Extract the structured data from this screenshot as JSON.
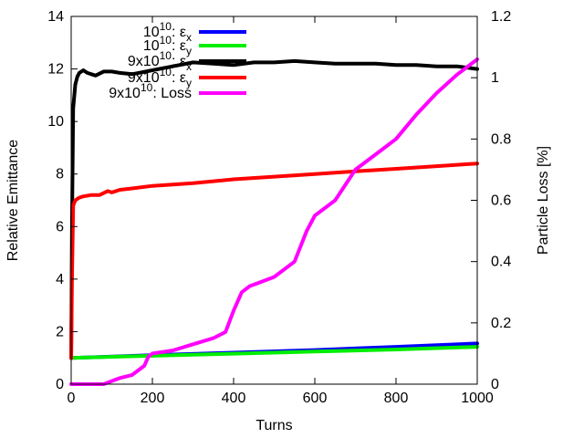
{
  "chart_data": {
    "type": "line",
    "title": "",
    "xlabel": "Turns",
    "ylabel": "Relative Emittance",
    "y2label": "Particle Loss [%]",
    "xlim": [
      0,
      1000
    ],
    "ylim": [
      0,
      14
    ],
    "y2lim": [
      0,
      1.2
    ],
    "x_ticks": [
      0,
      200,
      400,
      600,
      800,
      1000
    ],
    "y_ticks": [
      0,
      2,
      4,
      6,
      8,
      10,
      12,
      14
    ],
    "y2_ticks": [
      0,
      0.2,
      0.4,
      0.6,
      0.8,
      1,
      1.2
    ],
    "x_tick_labels": [
      "0",
      "200",
      "400",
      "600",
      "800",
      "1000"
    ],
    "y_tick_labels": [
      "0",
      "2",
      "4",
      "6",
      "8",
      "10",
      "12",
      "14"
    ],
    "y2_tick_labels": [
      "0",
      "0.2",
      "0.4",
      "0.6",
      "0.8",
      "1",
      "1.2"
    ],
    "grid": false,
    "legend_position": "top-left",
    "series": [
      {
        "name": "10^10: εx",
        "legend_prefix": "10",
        "legend_exp": "10",
        "legend_sep": ":",
        "legend_sym": "ε",
        "legend_sub": "x",
        "axis": "y1",
        "color": "#0000ff",
        "x": [
          0,
          200,
          400,
          600,
          800,
          1000
        ],
        "y": [
          1.0,
          1.1,
          1.2,
          1.3,
          1.42,
          1.55
        ]
      },
      {
        "name": "10^10: εy",
        "legend_prefix": "10",
        "legend_exp": "10",
        "legend_sep": ":",
        "legend_sym": "ε",
        "legend_sub": "y",
        "axis": "y1",
        "color": "#00ee00",
        "x": [
          0,
          200,
          400,
          600,
          800,
          1000
        ],
        "y": [
          1.0,
          1.08,
          1.16,
          1.24,
          1.32,
          1.42
        ]
      },
      {
        "name": "9x10^10: εx",
        "legend_prefix": "9x10",
        "legend_exp": "10",
        "legend_sep": ":",
        "legend_sym": "ε",
        "legend_sub": "x",
        "axis": "y1",
        "color": "#000000",
        "x": [
          0,
          2,
          5,
          10,
          15,
          20,
          30,
          40,
          60,
          80,
          100,
          120,
          150,
          200,
          250,
          300,
          350,
          400,
          450,
          500,
          550,
          600,
          650,
          700,
          750,
          800,
          850,
          900,
          950,
          1000
        ],
        "y": [
          1.0,
          6.0,
          10.5,
          11.4,
          11.7,
          11.85,
          11.95,
          11.85,
          11.75,
          11.9,
          11.9,
          11.85,
          11.8,
          11.95,
          12.1,
          12.25,
          12.2,
          12.15,
          12.25,
          12.25,
          12.3,
          12.25,
          12.2,
          12.2,
          12.2,
          12.15,
          12.15,
          12.1,
          12.1,
          12.0
        ]
      },
      {
        "name": "9x10^10: εy",
        "legend_prefix": "9x10",
        "legend_exp": "10",
        "legend_sep": ":",
        "legend_sym": "ε",
        "legend_sub": "y",
        "axis": "y1",
        "color": "#ff0000",
        "x": [
          0,
          2,
          5,
          10,
          20,
          30,
          50,
          70,
          90,
          100,
          120,
          150,
          200,
          300,
          400,
          500,
          600,
          700,
          800,
          900,
          1000
        ],
        "y": [
          1.0,
          4.0,
          6.8,
          7.0,
          7.1,
          7.15,
          7.2,
          7.2,
          7.35,
          7.3,
          7.4,
          7.45,
          7.55,
          7.65,
          7.8,
          7.9,
          8.0,
          8.1,
          8.2,
          8.3,
          8.4
        ]
      },
      {
        "name": "9x10^10: Loss",
        "legend_prefix": "9x10",
        "legend_exp": "10",
        "legend_sep": ":",
        "legend_sym": "Loss",
        "legend_sub": "",
        "axis": "y2",
        "color": "#ff00ff",
        "x": [
          0,
          80,
          100,
          120,
          150,
          180,
          190,
          200,
          250,
          300,
          350,
          380,
          400,
          420,
          440,
          460,
          500,
          550,
          580,
          600,
          650,
          700,
          750,
          800,
          850,
          900,
          950,
          1000
        ],
        "y": [
          0.0,
          0.0,
          0.01,
          0.02,
          0.03,
          0.06,
          0.09,
          0.1,
          0.11,
          0.13,
          0.15,
          0.17,
          0.24,
          0.3,
          0.32,
          0.33,
          0.35,
          0.4,
          0.5,
          0.55,
          0.6,
          0.7,
          0.75,
          0.8,
          0.88,
          0.95,
          1.01,
          1.06
        ]
      }
    ]
  }
}
